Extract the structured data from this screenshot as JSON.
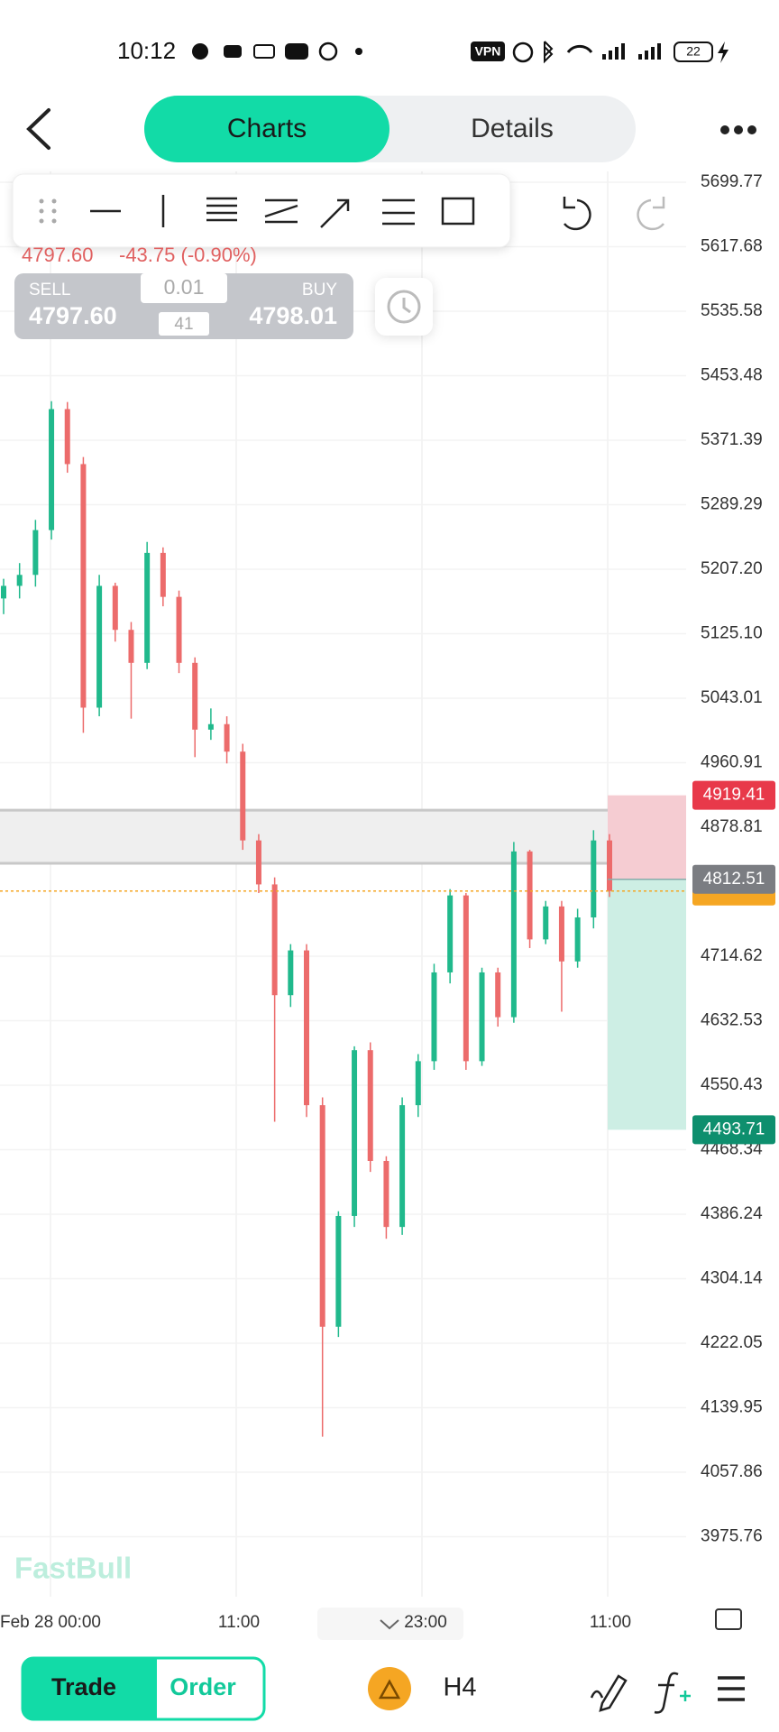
{
  "status_bar": {
    "time": "10:12",
    "vpn": "VPN",
    "battery": "22"
  },
  "tabs": [
    "Charts",
    "Details"
  ],
  "quote": {
    "last": "4797.60",
    "change": "-43.75 (-0.90%)"
  },
  "trade_panel": {
    "sell_label": "SELL",
    "sell_price": "4797.60",
    "lot": "0.01",
    "spread": "41",
    "buy_label": "BUY",
    "buy_price": "4798.01"
  },
  "chart_data": {
    "type": "candlestick",
    "open": [
      5170,
      5186,
      5200,
      5257,
      5411,
      5341,
      5031,
      5186,
      5130,
      5088,
      5228,
      5172,
      5088,
      5003,
      5010,
      4975,
      4862,
      4806,
      4665,
      4722,
      4525,
      4243,
      4384,
      4595,
      4454,
      4370,
      4525,
      4581,
      4694,
      4792,
      4581,
      4694,
      4637,
      4848,
      4736,
      4778,
      4708,
      4764,
      4862
    ],
    "high": [
      5195,
      5215,
      5270,
      5421,
      5420,
      5350,
      5200,
      5190,
      5140,
      5242,
      5235,
      5180,
      5095,
      5030,
      5020,
      4985,
      4870,
      4815,
      4730,
      4730,
      4535,
      4390,
      4600,
      4605,
      4460,
      4535,
      4590,
      4705,
      4800,
      4795,
      4700,
      4700,
      4860,
      4850,
      4785,
      4785,
      4775,
      4875,
      4870
    ],
    "low": [
      5150,
      5170,
      5185,
      5245,
      5330,
      4999,
      5020,
      5115,
      5017,
      5080,
      5160,
      5075,
      4968,
      4990,
      4960,
      4850,
      4795,
      4504,
      4650,
      4510,
      4103,
      4230,
      4370,
      4440,
      4355,
      4360,
      4510,
      4570,
      4680,
      4570,
      4575,
      4625,
      4630,
      4725,
      4730,
      4644,
      4700,
      4750,
      4790
    ],
    "close": [
      5186,
      5200,
      5257,
      5411,
      5341,
      5031,
      5186,
      5130,
      5088,
      5228,
      5172,
      5088,
      5003,
      5010,
      4975,
      4862,
      4806,
      4665,
      4722,
      4525,
      4243,
      4384,
      4595,
      4454,
      4370,
      4525,
      4581,
      4694,
      4792,
      4581,
      4694,
      4637,
      4848,
      4736,
      4778,
      4708,
      4764,
      4862,
      4797.6
    ],
    "up_color": "#20b98c",
    "down_color": "#ec6b6b",
    "ylim": [
      3975.76,
      5699.77
    ],
    "yticks": [
      5699.77,
      5617.68,
      5535.58,
      5453.48,
      5371.39,
      5289.29,
      {
        "value": 5207.2,
        "label": "5207.20"
      },
      {
        "value": 5125.1,
        "label": "5125.10"
      },
      5043.01,
      4960.91,
      4878.81,
      4714.62,
      4632.53,
      4550.43,
      4468.34,
      4386.24,
      4304.14,
      4222.05,
      4139.95,
      4057.86,
      3975.76
    ],
    "grid": true,
    "x_labels": [
      "Feb 28 00:00",
      "11:00",
      "23:00",
      "11:00"
    ],
    "band": [
      4832.9,
      4900.5
    ],
    "current_price": 4797.6,
    "levels": [
      4919.41,
      4812.51,
      4493.71
    ],
    "level_colors": [
      "#e8394a",
      "#7b7d82",
      "#0e8f6e"
    ],
    "watermark": "FastBull"
  },
  "bottom_bar": {
    "trade": "Trade",
    "order": "Order",
    "timeframe": "H4"
  }
}
